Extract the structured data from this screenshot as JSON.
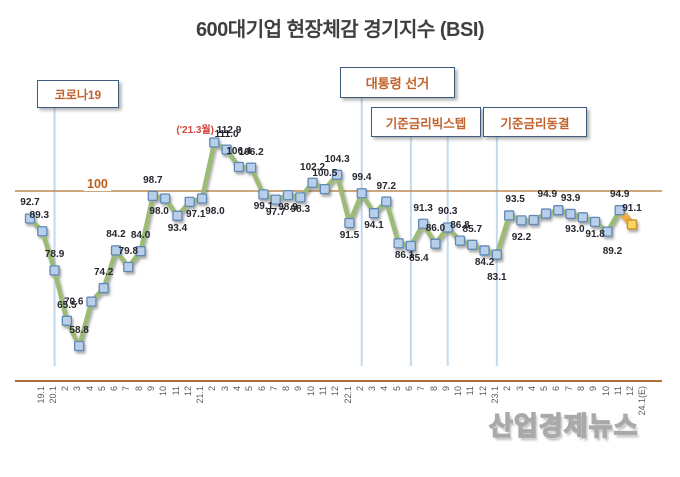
{
  "title": "600대기업 현장체감 경기지수 (BSI)",
  "watermark": "산업경제뉴스",
  "reference_line": {
    "label": "100",
    "value": 100
  },
  "annotations": {
    "covid": {
      "label": "코로나19",
      "x_indices": [
        2
      ]
    },
    "election": {
      "label": "대통령 선거",
      "x_indices": [
        27
      ]
    },
    "big_step": {
      "label": "기준금리빅스텝",
      "x_indices": [
        31,
        34
      ]
    },
    "rate_freeze": {
      "label": "기준금리동결",
      "x_indices": [
        38
      ]
    },
    "peak": {
      "prefix": "('21.3월)",
      "x_index": 15
    }
  },
  "colors": {
    "line_green": "#9cbc76",
    "marker_fill": "#b9cee8",
    "marker_border": "#6189b5",
    "gold_line": "#efac42",
    "gold_marker_fill": "#ffd45e",
    "gold_marker_border": "#c8952e",
    "reference_line": "#be8a52",
    "axis_line": "#a8713e",
    "event_line": "#c3d9ec",
    "label_text": "#26262e",
    "annotation_text": "#c2632c",
    "peak_red": "#d6453c"
  },
  "chart_data": {
    "type": "line",
    "title": "600대기업 현장체감 경기지수 (BSI)",
    "x_categories": [
      "19.1",
      "20.1",
      "2",
      "3",
      "4",
      "5",
      "6",
      "7",
      "8",
      "9",
      "10",
      "11",
      "12",
      "21.1",
      "2",
      "3",
      "4",
      "5",
      "6",
      "7",
      "8",
      "9",
      "10",
      "11",
      "12",
      "22.1",
      "2",
      "3",
      "4",
      "5",
      "6",
      "7",
      "8",
      "9",
      "10",
      "11",
      "12",
      "23.1",
      "2",
      "3",
      "4",
      "5",
      "6",
      "7",
      "8",
      "9",
      "10",
      "11",
      "12",
      "24.1(E)"
    ],
    "series": [
      {
        "name": "BSI",
        "values": [
          92.7,
          89.3,
          78.9,
          65.5,
          58.8,
          70.6,
          74.2,
          84.2,
          79.8,
          84.0,
          98.7,
          98.0,
          93.4,
          97.1,
          98.0,
          112.9,
          111.0,
          106.4,
          106.2,
          99.1,
          97.7,
          98.9,
          98.3,
          102.2,
          100.5,
          104.3,
          91.5,
          99.4,
          94.1,
          97.2,
          86.1,
          85.4,
          91.3,
          86.0,
          90.3,
          86.8,
          85.7,
          84.2,
          83.1,
          93.5,
          92.2,
          92.3,
          94.0,
          94.9,
          93.9,
          93.0,
          91.8,
          89.2,
          94.9,
          91.1
        ]
      }
    ],
    "point_labels": [
      "92.7",
      "89.3",
      "78.9",
      "65.5",
      "58.8",
      "70.6",
      "74.2",
      "84.2",
      "79.8",
      "84.0",
      "98.7",
      "98.0",
      "93.4",
      "97.1",
      "98.0",
      "112.9",
      "111.0",
      "106.4",
      "106.2",
      "99.1",
      "97.7",
      "98.9",
      "98.3",
      "102.2",
      "100.5",
      "104.3",
      "91.5",
      "99.4",
      "94.1",
      "97.2",
      "86.1",
      "85.4",
      "91.3",
      "86.0",
      "90.3",
      "86.8",
      "85.7",
      "84.2",
      "83.1",
      "93.5",
      "92.2",
      "",
      "",
      "94.9",
      "93.9",
      "93.0",
      "91.8",
      "89.2",
      "94.9",
      "91.1"
    ],
    "label_positions": [
      "above",
      "above",
      "above",
      "above",
      "above",
      "left",
      "above",
      "above",
      "above",
      "above",
      "above",
      "below",
      "below",
      "below",
      "below",
      "peak",
      "above",
      "above",
      "above",
      "below",
      "below",
      "below",
      "below",
      "above",
      "above",
      "above",
      "below",
      "above",
      "below",
      "above",
      "below",
      "below",
      "above",
      "above",
      "above",
      "above",
      "above",
      "below",
      "below",
      "above",
      "below",
      "none",
      "none",
      "above",
      "above",
      "below",
      "below",
      "below",
      "above",
      "above"
    ],
    "highlight_last_point": true,
    "reference_value": 100,
    "ylim": [
      55,
      115
    ],
    "grid": false,
    "legend": "none"
  }
}
